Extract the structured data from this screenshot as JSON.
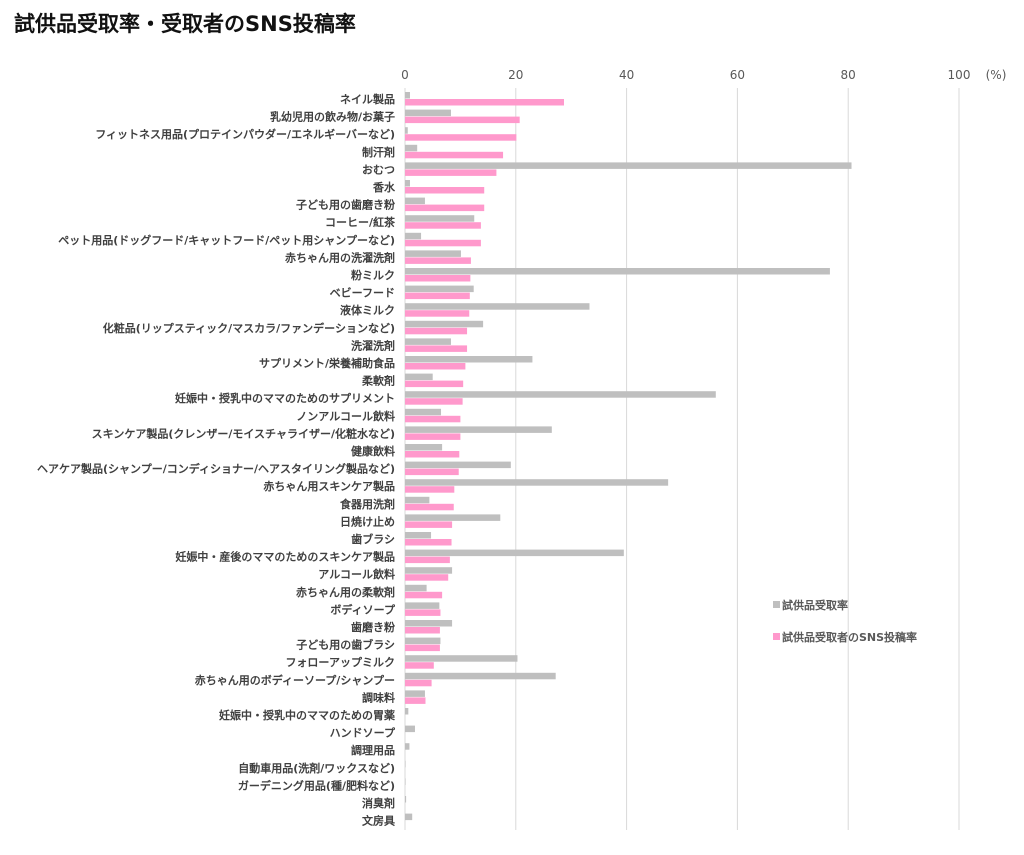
{
  "chart_data": {
    "type": "bar",
    "orientation": "horizontal",
    "title": "試供品受取率・受取者のSNS投稿率",
    "unit_label": "(%)",
    "xlim": [
      0,
      100
    ],
    "xticks": [
      0,
      20,
      40,
      60,
      80,
      100
    ],
    "grid": true,
    "legend_position": "right",
    "colors": {
      "試供品受取率": "#bfbfbf",
      "試供品受取者のSNS投稿率": "#ff99cc"
    },
    "categories": [
      "ネイル製品",
      "乳幼児用の飲み物/お菓子",
      "フィットネス用品(プロテインパウダー/エネルギーバーなど)",
      "制汗剤",
      "おむつ",
      "香水",
      "子ども用の歯磨き粉",
      "コーヒー/紅茶",
      "ペット用品(ドッグフード/キャットフード/ペット用シャンプーなど)",
      "赤ちゃん用の洗濯洗剤",
      "粉ミルク",
      "ベビーフード",
      "液体ミルク",
      "化粧品(リップスティック/マスカラ/ファンデーションなど)",
      "洗濯洗剤",
      "サプリメント/栄養補助食品",
      "柔軟剤",
      "妊娠中・授乳中のママのためのサプリメント",
      "ノンアルコール飲料",
      "スキンケア製品(クレンザー/モイスチャライザー/化粧水など)",
      "健康飲料",
      "ヘアケア製品(シャンプー/コンディショナー/ヘアスタイリング製品など)",
      "赤ちゃん用スキンケア製品",
      "食器用洗剤",
      "日焼け止め",
      "歯ブラシ",
      "妊娠中・産後のママのためのスキンケア製品",
      "アルコール飲料",
      "赤ちゃん用の柔軟剤",
      "ボディソープ",
      "歯磨き粉",
      "子ども用の歯ブラシ",
      "フォローアップミルク",
      "赤ちゃん用のボディーソープ/シャンプー",
      "調味料",
      "妊娠中・授乳中のママのための胃薬",
      "ハンドソープ",
      "調理用品",
      "自動車用品(洗剤/ワックスなど)",
      "ガーデニング用品(種/肥料など)",
      "消臭剤",
      "文房具"
    ],
    "series": [
      {
        "name": "試供品受取率",
        "values": [
          0.9,
          8.3,
          0.5,
          2.2,
          80.6,
          0.9,
          3.6,
          12.5,
          2.9,
          10.1,
          76.7,
          12.4,
          33.3,
          14.1,
          8.3,
          23.0,
          5.0,
          56.1,
          6.5,
          26.5,
          6.7,
          19.1,
          47.5,
          4.4,
          17.2,
          4.7,
          39.5,
          8.5,
          3.9,
          6.2,
          8.5,
          6.4,
          20.3,
          27.2,
          3.6,
          0.6,
          1.8,
          0.8,
          0.1,
          0.1,
          0.2,
          1.3
        ]
      },
      {
        "name": "試供品受取者のSNS投稿率",
        "values": [
          28.7,
          20.7,
          20.1,
          17.7,
          16.5,
          14.3,
          14.3,
          13.7,
          13.7,
          11.9,
          11.8,
          11.7,
          11.6,
          11.2,
          11.2,
          10.9,
          10.5,
          10.4,
          10.0,
          10.0,
          9.8,
          9.7,
          8.9,
          8.8,
          8.5,
          8.4,
          8.1,
          7.8,
          6.7,
          6.4,
          6.3,
          6.3,
          5.2,
          4.8,
          3.7,
          0,
          0,
          0,
          0,
          0,
          0,
          0
        ]
      }
    ]
  }
}
